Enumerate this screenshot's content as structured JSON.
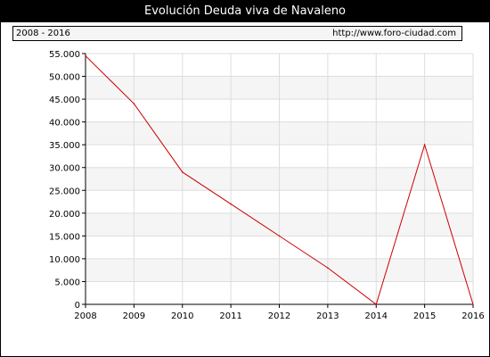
{
  "header": {
    "title": "Evolución Deuda viva de Navaleno",
    "period": "2008 - 2016",
    "url": "http://www.foro-ciudad.com"
  },
  "chart_data": {
    "type": "line",
    "title": "Evolución Deuda viva de Navaleno",
    "xlabel": "",
    "ylabel": "",
    "x": [
      "2008",
      "2009",
      "2010",
      "2011",
      "2012",
      "2013",
      "2014",
      "2015",
      "2016"
    ],
    "series": [
      {
        "values": [
          54500,
          44000,
          29000,
          22000,
          15000,
          8000,
          0,
          35000,
          0
        ],
        "color": "#cc0000"
      }
    ],
    "ylim": [
      0,
      55000
    ],
    "yticks": [
      0,
      5000,
      10000,
      15000,
      20000,
      25000,
      30000,
      35000,
      40000,
      45000,
      50000,
      55000
    ],
    "ytick_labels": [
      "0",
      "5.000",
      "10.000",
      "15.000",
      "20.000",
      "25.000",
      "30.000",
      "35.000",
      "40.000",
      "45.000",
      "50.000",
      "55.000"
    ],
    "grid": true,
    "band_color": "#f5f5f5",
    "grid_color": "#dddddd"
  }
}
